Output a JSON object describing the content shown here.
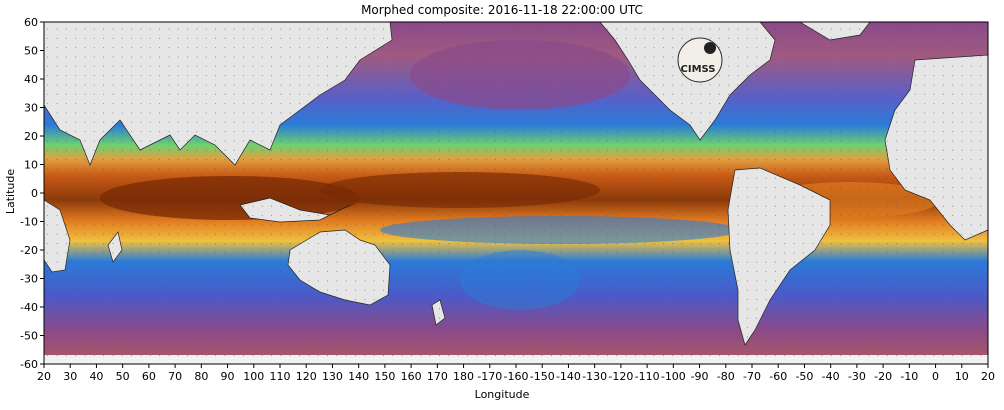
{
  "title": "Morphed composite: 2016-11-18 22:00:00 UTC",
  "x_axis_label": "Longitude",
  "y_axis_label": "Latitude",
  "logo_text": "CIMSS",
  "y_ticks": [
    "60",
    "50",
    "40",
    "30",
    "20",
    "10",
    "0",
    "-10",
    "-20",
    "-30",
    "-40",
    "-50",
    "-60"
  ],
  "x_ticks": [
    "20",
    "30",
    "40",
    "50",
    "60",
    "70",
    "80",
    "90",
    "100",
    "110",
    "120",
    "130",
    "140",
    "150",
    "160",
    "170",
    "180",
    "-170",
    "-160",
    "-150",
    "-140",
    "-130",
    "-120",
    "-110",
    "-100",
    "-90",
    "-80",
    "-70",
    "-60",
    "-50",
    "-40",
    "-30",
    "-20",
    "-10",
    "0",
    "10",
    "20"
  ],
  "colors": {
    "ocean_dry": "#8a4a8a",
    "ocean_low": "#2a7bd8",
    "ocean_mid": "#6fd06f",
    "ocean_high": "#e07a20",
    "ocean_max": "#7a2a05",
    "land": "#e6e6e6"
  }
}
